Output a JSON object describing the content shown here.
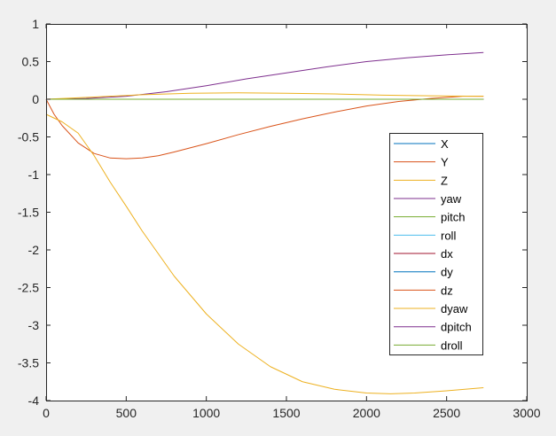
{
  "chart_data": {
    "type": "line",
    "title": "",
    "xlabel": "",
    "ylabel": "",
    "xlim": [
      0,
      3000
    ],
    "ylim": [
      -4,
      1
    ],
    "xticks": [
      0,
      500,
      1000,
      1500,
      2000,
      2500,
      3000
    ],
    "xtick_labels": [
      "0",
      "500",
      "1000",
      "1500",
      "2000",
      "2500",
      "3000"
    ],
    "yticks": [
      1,
      0.5,
      0,
      -0.5,
      -1,
      -1.5,
      -2,
      -2.5,
      -3,
      -3.5,
      -4
    ],
    "ytick_labels": [
      "1",
      "0.5",
      "0",
      "-0.5",
      "-1",
      "-1.5",
      "-2",
      "-2.5",
      "-3",
      "-3.5",
      "-4"
    ],
    "grid": false,
    "legend_position": "right-center",
    "series": [
      {
        "name": "X",
        "color": "#0072BD",
        "x": [
          0,
          2730
        ],
        "y": [
          0,
          0
        ]
      },
      {
        "name": "Y",
        "color": "#D95319",
        "x": [
          0,
          50,
          100,
          200,
          300,
          400,
          500,
          600,
          700,
          800,
          1000,
          1200,
          1400,
          1600,
          1800,
          2000,
          2200,
          2400,
          2600,
          2730
        ],
        "y": [
          0,
          -0.2,
          -0.35,
          -0.58,
          -0.72,
          -0.78,
          -0.79,
          -0.78,
          -0.75,
          -0.7,
          -0.59,
          -0.47,
          -0.36,
          -0.26,
          -0.17,
          -0.09,
          -0.03,
          0.01,
          0.04,
          0.04
        ]
      },
      {
        "name": "Z",
        "color": "#EDB120",
        "x": [
          0,
          100,
          200,
          300,
          400,
          500,
          600,
          800,
          1000,
          1200,
          1400,
          1600,
          1800,
          2000,
          2150,
          2300,
          2500,
          2730
        ],
        "y": [
          -0.2,
          -0.3,
          -0.45,
          -0.75,
          -1.1,
          -1.42,
          -1.75,
          -2.35,
          -2.85,
          -3.25,
          -3.55,
          -3.75,
          -3.85,
          -3.9,
          -3.91,
          -3.9,
          -3.87,
          -3.83
        ]
      },
      {
        "name": "yaw",
        "color": "#7E2F8E",
        "x": [
          0,
          250,
          500,
          750,
          1000,
          1250,
          1500,
          1750,
          2000,
          2250,
          2500,
          2730
        ],
        "y": [
          0,
          0.01,
          0.04,
          0.1,
          0.18,
          0.27,
          0.35,
          0.43,
          0.5,
          0.55,
          0.59,
          0.62
        ]
      },
      {
        "name": "pitch",
        "color": "#77AC30",
        "x": [
          0,
          2730
        ],
        "y": [
          0,
          0
        ]
      },
      {
        "name": "roll",
        "color": "#4DBEEE",
        "x": [
          0,
          2730
        ],
        "y": [
          0,
          0
        ]
      },
      {
        "name": "dx",
        "color": "#A2142F",
        "x": [
          0,
          2730
        ],
        "y": [
          0,
          0
        ]
      },
      {
        "name": "dy",
        "color": "#0072BD",
        "x": [
          0,
          2730
        ],
        "y": [
          0,
          0
        ]
      },
      {
        "name": "dz",
        "color": "#D95319",
        "x": [
          0,
          2730
        ],
        "y": [
          0,
          0
        ]
      },
      {
        "name": "dyaw",
        "color": "#EDB120",
        "x": [
          0,
          300,
          600,
          900,
          1200,
          1500,
          1800,
          2100,
          2400,
          2730
        ],
        "y": [
          0,
          0.03,
          0.06,
          0.08,
          0.085,
          0.08,
          0.07,
          0.055,
          0.045,
          0.04
        ]
      },
      {
        "name": "dpitch",
        "color": "#7E2F8E",
        "x": [
          0,
          2730
        ],
        "y": [
          0,
          0
        ]
      },
      {
        "name": "droll",
        "color": "#77AC30",
        "x": [
          0,
          2730
        ],
        "y": [
          0,
          0
        ]
      }
    ]
  }
}
